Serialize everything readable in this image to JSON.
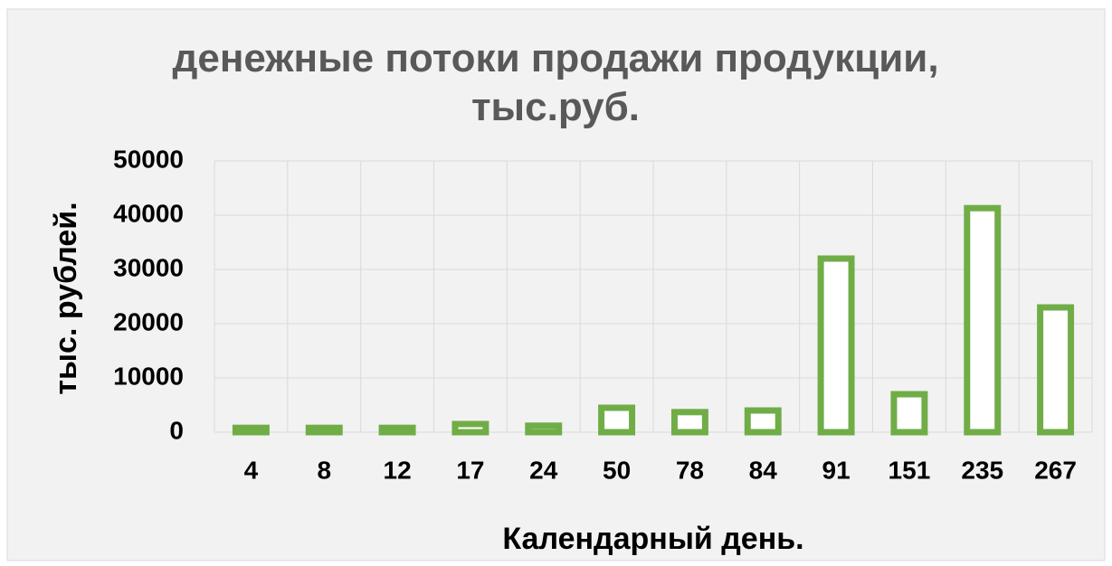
{
  "chart_data": {
    "type": "bar",
    "title": "денежные потоки продажи продукции, тыс.руб.",
    "x_label": "Календарный день.",
    "y_label": "тыс. рублей.",
    "categories": [
      "4",
      "8",
      "12",
      "17",
      "24",
      "50",
      "78",
      "84",
      "91",
      "151",
      "235",
      "267"
    ],
    "values": [
      800,
      800,
      800,
      1500,
      1200,
      4500,
      3700,
      4000,
      32000,
      7000,
      41300,
      23000
    ],
    "color": "#70ad47",
    "ylim": [
      0,
      50000
    ],
    "yticks": [
      0,
      10000,
      20000,
      30000,
      40000,
      50000
    ],
    "grid": true
  }
}
